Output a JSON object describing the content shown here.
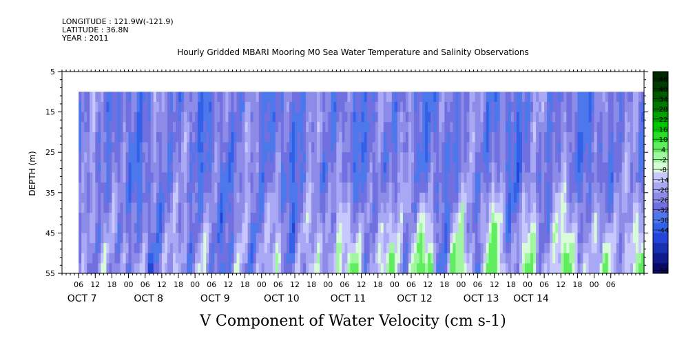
{
  "header": {
    "longitude": "LONGITUDE : 121.9W(-121.9)",
    "latitude": "LATITUDE : 36.8N",
    "year": "YEAR : 2011"
  },
  "chart_data": {
    "type": "heatmap",
    "title": "Hourly Gridded MBARI Mooring M0 Sea Water Temperature and Salinity Observations",
    "xlabel": "V Component of Water Velocity (cm s-1)",
    "ylabel": "DEPTH (m)",
    "y_range": [
      5,
      55
    ],
    "y_ticks": [
      5,
      15,
      25,
      35,
      45,
      55
    ],
    "data_depth_range": [
      10,
      55
    ],
    "x_range_hours": [
      0,
      210
    ],
    "data_x_start_hours": 6,
    "hour_ticks": [
      "06",
      "12",
      "18",
      "00",
      "06",
      "12",
      "18",
      "00",
      "06",
      "12",
      "18",
      "00",
      "06",
      "12",
      "18",
      "00",
      "06",
      "12",
      "18",
      "00",
      "06",
      "12",
      "18",
      "00",
      "06",
      "12",
      "18",
      "00",
      "06",
      "12",
      "18",
      "00",
      "06"
    ],
    "day_labels": [
      {
        "label": "OCT  7",
        "hour": 6
      },
      {
        "label": "OCT  8",
        "hour": 30
      },
      {
        "label": "OCT  9",
        "hour": 54
      },
      {
        "label": "OCT 10",
        "hour": 78
      },
      {
        "label": "OCT 11",
        "hour": 102
      },
      {
        "label": "OCT 12",
        "hour": 126
      },
      {
        "label": "OCT 13",
        "hour": 150
      },
      {
        "label": "OCT 14",
        "hour": 168
      }
    ],
    "colorbar": {
      "labels": [
        "46",
        "40",
        "34",
        "28",
        "22",
        "16",
        "10",
        "4",
        "-2",
        "-8",
        "-14",
        "-20",
        "-26",
        "-32",
        "-38",
        "-44",
        "-50"
      ],
      "colors": [
        "#002800",
        "#003c00",
        "#005a00",
        "#007800",
        "#00a000",
        "#00c800",
        "#28dc28",
        "#60ee60",
        "#a0f7a0",
        "#d8fcd8",
        "#c8c8ff",
        "#a8a8f4",
        "#8c8ce8",
        "#7070e0",
        "#4c78ec",
        "#3360e8",
        "#2444d8",
        "#1a30b0",
        "#101c8c",
        "#0a0a66"
      ]
    },
    "data_range": [
      -32,
      16
    ],
    "notes": "Velocity field approximated: predominantly negative (blue, around -14 to -32) with positive (green, up to ~16) patches concentrated at depths below 35 m, mainly Oct 10-14."
  }
}
